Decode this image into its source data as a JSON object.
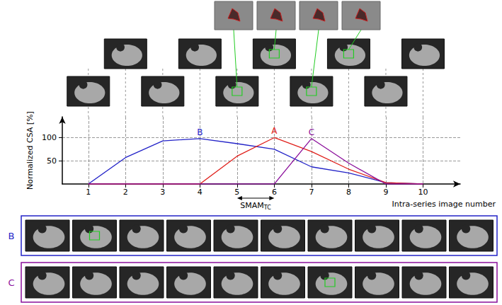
{
  "chart_data": {
    "type": "line",
    "x": [
      1,
      2,
      3,
      4,
      5,
      6,
      7,
      8,
      9,
      10
    ],
    "xlim": [
      0.3,
      11
    ],
    "xticks": [
      1,
      2,
      3,
      4,
      5,
      6,
      7,
      8,
      9,
      10
    ],
    "ylim": [
      0,
      145
    ],
    "yticks": [
      50,
      100
    ],
    "grid": true,
    "x_label": "Intra-series image number",
    "y_label": "Normalized CSA [%]",
    "series": [
      {
        "name": "B",
        "color": "#2323c8",
        "values": [
          0,
          57,
          93,
          98,
          87,
          75,
          37,
          24,
          3,
          0
        ]
      },
      {
        "name": "A",
        "color": "#e0201b",
        "values": [
          0,
          0,
          0,
          0,
          60,
          100,
          70,
          32,
          3,
          0
        ]
      },
      {
        "name": "C",
        "color": "#8b0f9b",
        "values": [
          0,
          0,
          0,
          0,
          0,
          0,
          98,
          45,
          0,
          0
        ]
      }
    ],
    "annotations": [
      {
        "text": "SMAM",
        "subscript": "TC",
        "x_from": 5,
        "x_to": 6
      }
    ],
    "panels": [
      {
        "label": "B",
        "color": "#2323c8"
      },
      {
        "label": "C",
        "color": "#8b0f9b"
      }
    ]
  }
}
